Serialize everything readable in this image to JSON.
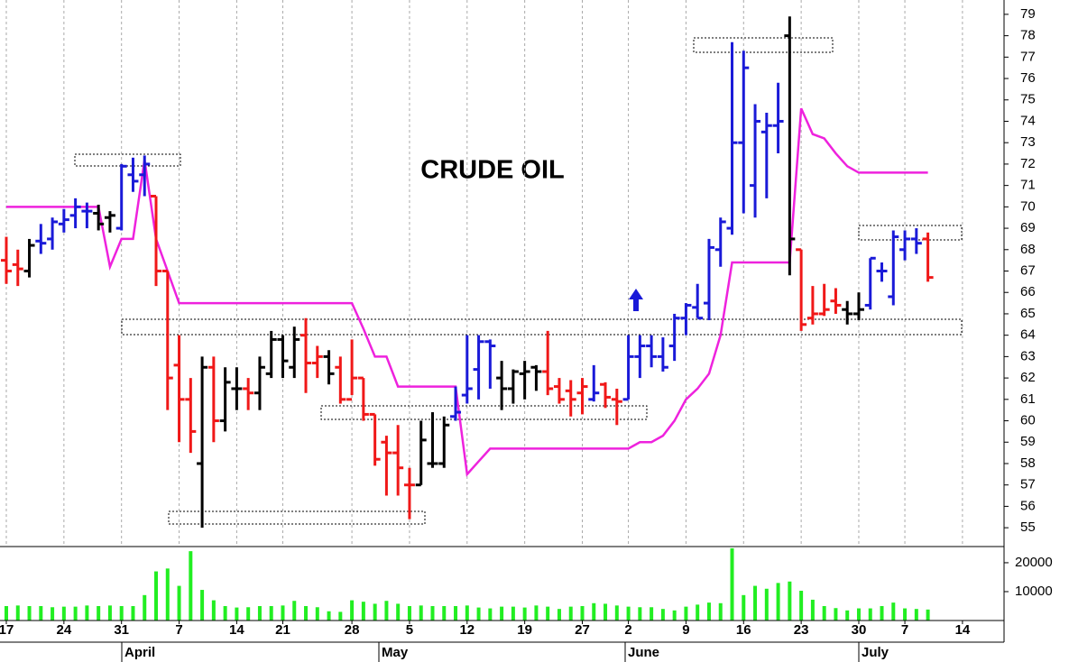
{
  "chart_data": {
    "type": "ohlc",
    "title": "CRUDE OIL",
    "categories": [
      "17",
      null,
      null,
      null,
      null,
      "24",
      null,
      null,
      null,
      null,
      "31",
      null,
      null,
      null,
      null,
      "7",
      null,
      null,
      null,
      null,
      "14",
      null,
      null,
      null,
      "21",
      null,
      null,
      null,
      null,
      null,
      "28",
      null,
      null,
      null,
      null,
      "5",
      null,
      null,
      null,
      null,
      "12",
      null,
      null,
      null,
      null,
      "19",
      null,
      null,
      null,
      null,
      "27",
      null,
      null,
      null,
      "2",
      null,
      null,
      null,
      null,
      "9",
      null,
      null,
      null,
      null,
      "16",
      null,
      null,
      null,
      null,
      "23",
      null,
      null,
      null,
      null,
      "30",
      null,
      null,
      null,
      "7",
      null,
      null,
      null,
      null,
      "14"
    ],
    "months": [
      "April",
      "May",
      "June",
      "July"
    ],
    "open": [
      67.5,
      67.3,
      67.0,
      68.4,
      68.5,
      69.2,
      69.6,
      69.8,
      69.7,
      69.5,
      69.0,
      71.5,
      71.5,
      70.5,
      67.0,
      62.6,
      61.0,
      58.0,
      62.5,
      60.0,
      61.5,
      61.5,
      61.3,
      62.2,
      63.8,
      62.5,
      64.0,
      62.7,
      63.0,
      62.5,
      61.0,
      62.0,
      60.3,
      59.0,
      58.5,
      57.0,
      57.0,
      58.0,
      58.0,
      60.2,
      61.2,
      62.4,
      63.7,
      62.0,
      61.5,
      62.2,
      62.5,
      62.3,
      61.6,
      61.4,
      61.3,
      61.0,
      61.7,
      61.0,
      61.0,
      63.0,
      63.5,
      63.0,
      63.5,
      64.8,
      65.3,
      65.5,
      68.0,
      69.0,
      73.0,
      71.0,
      73.5,
      73.8,
      78.0,
      68.0,
      64.8,
      65.0,
      65.6,
      65.2,
      65.0,
      65.4,
      67.0,
      65.8,
      68.0,
      68.5,
      68.5,
      null,
      null,
      null
    ],
    "high": [
      68.6,
      68.0,
      68.5,
      69.2,
      69.5,
      69.9,
      70.4,
      70.2,
      70.1,
      69.8,
      72.0,
      72.3,
      72.4,
      70.5,
      67.0,
      64.0,
      62.0,
      63.0,
      63.0,
      62.5,
      62.5,
      62.0,
      63.0,
      64.2,
      64.0,
      64.4,
      64.8,
      63.5,
      63.3,
      63.0,
      63.8,
      62.0,
      60.3,
      59.3,
      59.8,
      57.8,
      60.0,
      60.4,
      60.2,
      61.6,
      64.0,
      64.0,
      63.8,
      62.8,
      62.4,
      62.8,
      62.6,
      64.2,
      62.0,
      61.9,
      62.0,
      62.6,
      61.8,
      61.5,
      64.0,
      64.0,
      64.0,
      63.9,
      65.0,
      65.5,
      66.4,
      68.5,
      69.5,
      77.7,
      77.3,
      74.8,
      74.4,
      75.8,
      78.9,
      68.0,
      66.3,
      66.4,
      66.2,
      65.6,
      66.0,
      67.6,
      67.4,
      68.9,
      68.9,
      69.0,
      68.8,
      null,
      null,
      null
    ],
    "low": [
      66.4,
      66.3,
      66.7,
      67.8,
      68.0,
      68.8,
      69.0,
      69.0,
      68.9,
      68.8,
      68.9,
      70.7,
      70.5,
      66.3,
      60.5,
      59.0,
      58.5,
      55.0,
      59.0,
      59.5,
      60.5,
      60.5,
      60.5,
      62.0,
      62.0,
      62.0,
      61.3,
      62.0,
      61.7,
      60.8,
      61.2,
      60.0,
      57.9,
      56.5,
      56.5,
      55.4,
      57.0,
      57.8,
      57.8,
      60.0,
      60.8,
      61.0,
      61.5,
      60.5,
      60.8,
      61.0,
      61.4,
      61.2,
      60.8,
      60.2,
      60.3,
      60.9,
      60.6,
      59.8,
      61.0,
      62.0,
      62.5,
      62.3,
      62.8,
      64.0,
      64.8,
      64.7,
      67.2,
      68.7,
      69.7,
      69.5,
      70.4,
      72.5,
      66.8,
      64.2,
      64.5,
      64.9,
      65.0,
      64.5,
      64.7,
      65.2,
      66.5,
      65.4,
      67.5,
      67.8,
      66.5,
      null,
      null,
      null
    ],
    "close": [
      67.0,
      67.1,
      68.2,
      68.3,
      69.3,
      69.4,
      70.0,
      69.8,
      69.2,
      69.6,
      71.9,
      71.2,
      72.0,
      67.0,
      62.0,
      61.0,
      59.5,
      62.5,
      60.0,
      61.8,
      61.5,
      61.3,
      62.5,
      63.8,
      62.8,
      63.8,
      62.7,
      63.0,
      62.2,
      61.0,
      62.0,
      60.3,
      58.2,
      58.5,
      57.8,
      57.0,
      59.1,
      58.0,
      59.8,
      60.4,
      61.5,
      63.7,
      63.5,
      61.5,
      62.3,
      62.3,
      62.3,
      61.5,
      61.0,
      61.0,
      61.6,
      61.3,
      61.1,
      60.9,
      63.0,
      63.5,
      63.0,
      62.5,
      64.8,
      65.4,
      64.8,
      68.1,
      69.3,
      73.0,
      76.5,
      74.0,
      73.8,
      74.0,
      68.5,
      64.5,
      65.0,
      65.2,
      65.4,
      65.0,
      65.2,
      67.6,
      67.0,
      68.6,
      68.5,
      68.3,
      66.7,
      null,
      null,
      null
    ],
    "bar_colors": [
      "#f01818",
      "#f01818",
      "#000000",
      "#1a1ad8",
      "#1a1ad8",
      "#1a1ad8",
      "#1a1ad8",
      "#1a1ad8",
      "#000000",
      "#000000",
      "#1a1ad8",
      "#1a1ad8",
      "#1a1ad8",
      "#f01818",
      "#f01818",
      "#f01818",
      "#f01818",
      "#000000",
      "#f01818",
      "#000000",
      "#000000",
      "#f01818",
      "#000000",
      "#000000",
      "#000000",
      "#000000",
      "#f01818",
      "#f01818",
      "#000000",
      "#f01818",
      "#f01818",
      "#f01818",
      "#f01818",
      "#f01818",
      "#f01818",
      "#f01818",
      "#000000",
      "#000000",
      "#000000",
      "#1a1ad8",
      "#1a1ad8",
      "#1a1ad8",
      "#1a1ad8",
      "#000000",
      "#000000",
      "#000000",
      "#000000",
      "#f01818",
      "#f01818",
      "#f01818",
      "#f01818",
      "#1a1ad8",
      "#f01818",
      "#f01818",
      "#1a1ad8",
      "#1a1ad8",
      "#1a1ad8",
      "#1a1ad8",
      "#1a1ad8",
      "#1a1ad8",
      "#1a1ad8",
      "#1a1ad8",
      "#1a1ad8",
      "#1a1ad8",
      "#1a1ad8",
      "#1a1ad8",
      "#1a1ad8",
      "#1a1ad8",
      "#000000",
      "#f01818",
      "#f01818",
      "#f01818",
      "#f01818",
      "#000000",
      "#000000",
      "#1a1ad8",
      "#1a1ad8",
      "#1a1ad8",
      "#1a1ad8",
      "#1a1ad8",
      "#f01818",
      null,
      null,
      null
    ],
    "stop": [
      70.0,
      70.0,
      70.0,
      70.0,
      70.0,
      70.0,
      70.0,
      70.0,
      70.0,
      67.2,
      68.5,
      68.5,
      72.2,
      68.5,
      67.0,
      65.5,
      65.5,
      65.5,
      65.5,
      65.5,
      65.5,
      65.5,
      65.5,
      65.5,
      65.5,
      65.5,
      65.5,
      65.5,
      65.5,
      65.5,
      65.5,
      64.3,
      63.0,
      63.0,
      61.6,
      61.6,
      61.6,
      61.6,
      61.6,
      61.6,
      57.5,
      58.1,
      58.7,
      58.7,
      58.7,
      58.7,
      58.7,
      58.7,
      58.7,
      58.7,
      58.7,
      58.7,
      58.7,
      58.7,
      58.7,
      59.0,
      59.0,
      59.3,
      60.0,
      61.0,
      61.5,
      62.2,
      64.0,
      67.4,
      67.4,
      67.4,
      67.4,
      67.4,
      67.4,
      74.6,
      73.4,
      73.2,
      72.5,
      71.9,
      71.6,
      71.6,
      71.6,
      71.6,
      71.6,
      71.6,
      71.6,
      null,
      null,
      null
    ],
    "stop_color": "#ee22dd",
    "volume": [
      5000,
      5200,
      5000,
      5000,
      4600,
      4800,
      4800,
      5200,
      5000,
      5200,
      5000,
      5000,
      8800,
      17000,
      18000,
      12000,
      24000,
      10600,
      7000,
      5000,
      4500,
      4600,
      5000,
      5000,
      5200,
      6800,
      5000,
      4600,
      3200,
      3000,
      7000,
      6500,
      5800,
      6800,
      5800,
      5000,
      5200,
      5000,
      5000,
      5000,
      5200,
      4500,
      4200,
      4800,
      4800,
      4500,
      5200,
      4800,
      4000,
      4800,
      5000,
      6000,
      5800,
      5200,
      4800,
      4600,
      4600,
      4000,
      3500,
      4800,
      5500,
      6200,
      6000,
      25000,
      8800,
      12000,
      11000,
      13000,
      13500,
      10300,
      7200,
      5000,
      4300,
      3500,
      4200,
      4200,
      5000,
      6200,
      4200,
      4000,
      3800,
      null,
      null,
      null
    ],
    "volume_color": "#22ee22",
    "ylim": [
      54.12,
      79.67
    ],
    "yticks": [
      55,
      56,
      57,
      58,
      59,
      60,
      61,
      62,
      63,
      64,
      65,
      66,
      67,
      68,
      69,
      70,
      71,
      72,
      73,
      74,
      75,
      76,
      77,
      78,
      79
    ],
    "volume_ylim": [
      0,
      25600
    ],
    "volume_yticks": [
      10000,
      20000
    ],
    "grid": true
  }
}
